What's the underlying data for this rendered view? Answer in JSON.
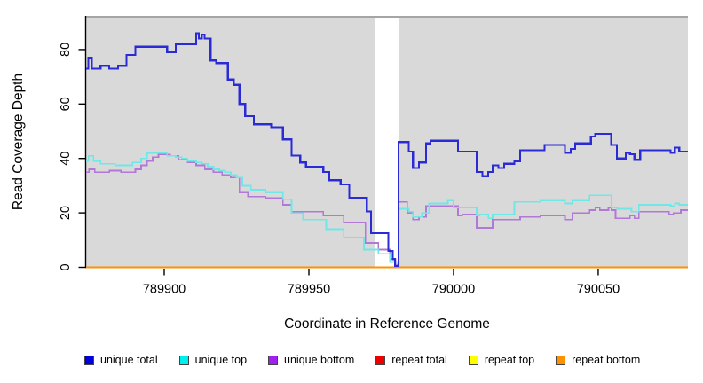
{
  "chart_data": {
    "type": "line",
    "subtype": "step",
    "title": "",
    "xlabel": "Coordinate in Reference Genome",
    "ylabel": "Read Coverage Depth",
    "xlim": [
      789873,
      790081
    ],
    "ylim": [
      0,
      92.35
    ],
    "x_ticks": [
      789900,
      789950,
      790000,
      790050
    ],
    "y_ticks": [
      0,
      20,
      40,
      60,
      80
    ],
    "grid": false,
    "plot_background": "#d9d9d9",
    "plot_top_edge_color": "#a5a5a5",
    "highlight_band": {
      "from": 789973,
      "to": 789981,
      "color": "#ffffff"
    },
    "legend_position": "bottom",
    "series": [
      {
        "name": "unique total",
        "color": "#2b2bd5",
        "width": 2.2,
        "points": [
          [
            789873,
            73
          ],
          [
            789873.8,
            77
          ],
          [
            789875,
            73
          ],
          [
            789878,
            74
          ],
          [
            789881,
            73
          ],
          [
            789884,
            74
          ],
          [
            789887,
            78
          ],
          [
            789890,
            81
          ],
          [
            789901,
            79
          ],
          [
            789904,
            82
          ],
          [
            789909,
            82
          ],
          [
            789911,
            86
          ],
          [
            789912,
            84
          ],
          [
            789913,
            85.5
          ],
          [
            789914,
            84
          ],
          [
            789916,
            76
          ],
          [
            789918,
            75
          ],
          [
            789922,
            69
          ],
          [
            789924,
            67
          ],
          [
            789926,
            60
          ],
          [
            789928,
            55.5
          ],
          [
            789931,
            52.5
          ],
          [
            789937,
            51.5
          ],
          [
            789941,
            47
          ],
          [
            789944,
            41
          ],
          [
            789947,
            38.5
          ],
          [
            789949,
            37
          ],
          [
            789955,
            35
          ],
          [
            789957,
            32
          ],
          [
            789961,
            30.5
          ],
          [
            789964,
            25.5
          ],
          [
            789970,
            20.5
          ],
          [
            789971.5,
            12.5
          ],
          [
            789977.5,
            6
          ],
          [
            789979,
            3
          ],
          [
            789979.8,
            0.5
          ],
          [
            789981,
            46
          ],
          [
            789984.5,
            42.5
          ],
          [
            789986,
            36.5
          ],
          [
            789988,
            38.5
          ],
          [
            789990.5,
            45.5
          ],
          [
            789992,
            46.5
          ],
          [
            790001.5,
            42.5
          ],
          [
            790008,
            35
          ],
          [
            790010,
            33.5
          ],
          [
            790012,
            35
          ],
          [
            790013.5,
            37.5
          ],
          [
            790015.5,
            36.5
          ],
          [
            790017.5,
            38
          ],
          [
            790021,
            39
          ],
          [
            790023,
            43
          ],
          [
            790030.5,
            43
          ],
          [
            790031.5,
            45
          ],
          [
            790038.5,
            42
          ],
          [
            790040.5,
            43.5
          ],
          [
            790042,
            45.5
          ],
          [
            790047.5,
            48
          ],
          [
            790049,
            49
          ],
          [
            790054.5,
            45
          ],
          [
            790056.5,
            40
          ],
          [
            790059.5,
            42
          ],
          [
            790061,
            41.5
          ],
          [
            790062.5,
            39.5
          ],
          [
            790064.5,
            43
          ],
          [
            790075,
            42
          ],
          [
            790076.5,
            44
          ],
          [
            790078,
            42.5
          ]
        ]
      },
      {
        "name": "unique top",
        "color": "#6fe7e7",
        "width": 1.7,
        "points": [
          [
            789873,
            39
          ],
          [
            789873.8,
            41
          ],
          [
            789875.5,
            39
          ],
          [
            789878,
            38
          ],
          [
            789883,
            37.5
          ],
          [
            789889,
            38.5
          ],
          [
            789892,
            40
          ],
          [
            789894,
            42
          ],
          [
            789899,
            42
          ],
          [
            789901,
            41
          ],
          [
            789904,
            40.5
          ],
          [
            789906,
            40
          ],
          [
            789908,
            39
          ],
          [
            789911,
            38.5
          ],
          [
            789913,
            38
          ],
          [
            789915,
            37
          ],
          [
            789917,
            36
          ],
          [
            789919,
            35.5
          ],
          [
            789921,
            35
          ],
          [
            789923,
            34
          ],
          [
            789925,
            33
          ],
          [
            789927,
            30
          ],
          [
            789930,
            28.5
          ],
          [
            789935,
            27.5
          ],
          [
            789941,
            25
          ],
          [
            789944,
            20
          ],
          [
            789948,
            17.5
          ],
          [
            789956,
            14
          ],
          [
            789962,
            11
          ],
          [
            789969,
            6.5
          ],
          [
            789974,
            5
          ],
          [
            789978,
            2
          ],
          [
            789981,
            21.5
          ],
          [
            789984.5,
            20.5
          ],
          [
            789986,
            18.5
          ],
          [
            789989,
            20
          ],
          [
            789991.5,
            23.5
          ],
          [
            789998,
            24.5
          ],
          [
            790000,
            22
          ],
          [
            790008,
            19
          ],
          [
            790009,
            19.5
          ],
          [
            790012,
            18
          ],
          [
            790013.5,
            19.5
          ],
          [
            790021,
            24
          ],
          [
            790030,
            24.5
          ],
          [
            790038.5,
            23.5
          ],
          [
            790041,
            24.5
          ],
          [
            790047,
            26.5
          ],
          [
            790054.5,
            22
          ],
          [
            790056.5,
            21.5
          ],
          [
            790061.5,
            20.5
          ],
          [
            790064,
            23
          ],
          [
            790075,
            22.5
          ],
          [
            790076.5,
            23.5
          ],
          [
            790078,
            23
          ]
        ]
      },
      {
        "name": "unique bottom",
        "color": "#b278d8",
        "width": 1.7,
        "points": [
          [
            789873,
            35
          ],
          [
            789874,
            36
          ],
          [
            789876,
            35
          ],
          [
            789881,
            35.5
          ],
          [
            789885,
            35
          ],
          [
            789890,
            36
          ],
          [
            789892,
            37.5
          ],
          [
            789894,
            39
          ],
          [
            789896,
            40.5
          ],
          [
            789898,
            41.5
          ],
          [
            789902,
            41
          ],
          [
            789905,
            39.5
          ],
          [
            789908,
            38.5
          ],
          [
            789911,
            37.5
          ],
          [
            789914,
            36
          ],
          [
            789917,
            35
          ],
          [
            789920,
            34
          ],
          [
            789923,
            33
          ],
          [
            789926,
            27.5
          ],
          [
            789929,
            26
          ],
          [
            789935,
            25.5
          ],
          [
            789941,
            23
          ],
          [
            789944,
            20.5
          ],
          [
            789955,
            19
          ],
          [
            789962,
            16.5
          ],
          [
            789969.5,
            9
          ],
          [
            789974,
            6.5
          ],
          [
            789978,
            3
          ],
          [
            789980,
            1
          ],
          [
            789981,
            24
          ],
          [
            789984,
            20
          ],
          [
            789986,
            17.5
          ],
          [
            789988,
            18.5
          ],
          [
            789990.5,
            22.5
          ],
          [
            790001.5,
            19
          ],
          [
            790003,
            19.5
          ],
          [
            790008,
            14.5
          ],
          [
            790013.5,
            17.5
          ],
          [
            790023,
            18.5
          ],
          [
            790030,
            19
          ],
          [
            790038.5,
            17.5
          ],
          [
            790041,
            20
          ],
          [
            790047,
            21
          ],
          [
            790049,
            22
          ],
          [
            790050.5,
            21
          ],
          [
            790053.5,
            22
          ],
          [
            790054.5,
            21
          ],
          [
            790056,
            18
          ],
          [
            790061,
            19
          ],
          [
            790062.5,
            18
          ],
          [
            790064,
            20.5
          ],
          [
            790074.5,
            19.5
          ],
          [
            790076,
            20
          ],
          [
            790078.5,
            21
          ]
        ]
      },
      {
        "name": "repeat total",
        "color": "#ee0000",
        "width": 1.5,
        "points": [
          [
            789873,
            0
          ]
        ]
      },
      {
        "name": "repeat top",
        "color": "#ffff00",
        "width": 1.5,
        "points": [
          [
            789873,
            0
          ]
        ]
      },
      {
        "name": "repeat bottom",
        "color": "#ff9100",
        "width": 2,
        "points": [
          [
            789873,
            0
          ]
        ]
      }
    ]
  },
  "legend": {
    "items": [
      {
        "label": "unique total",
        "color": "#0000dd"
      },
      {
        "label": "unique top",
        "color": "#00eeee"
      },
      {
        "label": "unique bottom",
        "color": "#a020f0"
      },
      {
        "label": "repeat total",
        "color": "#ee0000"
      },
      {
        "label": "repeat top",
        "color": "#ffff00"
      },
      {
        "label": "repeat bottom",
        "color": "#ff9100"
      }
    ]
  }
}
